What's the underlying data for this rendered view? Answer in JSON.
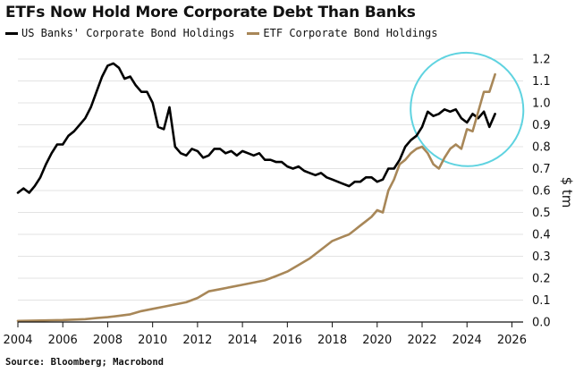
{
  "chart_data": {
    "type": "line",
    "title": "ETFs Now Hold More Corporate Debt Than Banks",
    "ylabel": "$ tm",
    "xlabel": "",
    "xlim": [
      2004,
      2026.5
    ],
    "ylim": [
      0,
      1.2
    ],
    "x_ticks": [
      "2004",
      "2006",
      "2008",
      "2010",
      "2012",
      "2014",
      "2016",
      "2018",
      "2020",
      "2022",
      "2024",
      "2026"
    ],
    "y_ticks": [
      "0.0",
      "0.1",
      "0.2",
      "0.3",
      "0.4",
      "0.5",
      "0.6",
      "0.7",
      "0.8",
      "0.9",
      "1.0",
      "1.1",
      "1.2"
    ],
    "legend_position": "top-left",
    "source": "Source: Bloomberg; Macrobond",
    "series": [
      {
        "name": "US Banks' Corporate Bond Holdings",
        "color": "#000000",
        "points": [
          [
            2004.0,
            0.59
          ],
          [
            2004.25,
            0.61
          ],
          [
            2004.5,
            0.59
          ],
          [
            2004.75,
            0.62
          ],
          [
            2005.0,
            0.66
          ],
          [
            2005.25,
            0.72
          ],
          [
            2005.5,
            0.77
          ],
          [
            2005.75,
            0.81
          ],
          [
            2006.0,
            0.81
          ],
          [
            2006.25,
            0.85
          ],
          [
            2006.5,
            0.87
          ],
          [
            2006.75,
            0.9
          ],
          [
            2007.0,
            0.93
          ],
          [
            2007.25,
            0.98
          ],
          [
            2007.5,
            1.05
          ],
          [
            2007.75,
            1.12
          ],
          [
            2008.0,
            1.17
          ],
          [
            2008.25,
            1.18
          ],
          [
            2008.5,
            1.16
          ],
          [
            2008.75,
            1.11
          ],
          [
            2009.0,
            1.12
          ],
          [
            2009.25,
            1.08
          ],
          [
            2009.5,
            1.05
          ],
          [
            2009.75,
            1.05
          ],
          [
            2010.0,
            1.0
          ],
          [
            2010.25,
            0.89
          ],
          [
            2010.5,
            0.88
          ],
          [
            2010.75,
            0.98
          ],
          [
            2011.0,
            0.8
          ],
          [
            2011.25,
            0.77
          ],
          [
            2011.5,
            0.76
          ],
          [
            2011.75,
            0.79
          ],
          [
            2012.0,
            0.78
          ],
          [
            2012.25,
            0.75
          ],
          [
            2012.5,
            0.76
          ],
          [
            2012.75,
            0.79
          ],
          [
            2013.0,
            0.79
          ],
          [
            2013.25,
            0.77
          ],
          [
            2013.5,
            0.78
          ],
          [
            2013.75,
            0.76
          ],
          [
            2014.0,
            0.78
          ],
          [
            2014.25,
            0.77
          ],
          [
            2014.5,
            0.76
          ],
          [
            2014.75,
            0.77
          ],
          [
            2015.0,
            0.74
          ],
          [
            2015.25,
            0.74
          ],
          [
            2015.5,
            0.73
          ],
          [
            2015.75,
            0.73
          ],
          [
            2016.0,
            0.71
          ],
          [
            2016.25,
            0.7
          ],
          [
            2016.5,
            0.71
          ],
          [
            2016.75,
            0.69
          ],
          [
            2017.0,
            0.68
          ],
          [
            2017.25,
            0.67
          ],
          [
            2017.5,
            0.68
          ],
          [
            2017.75,
            0.66
          ],
          [
            2018.0,
            0.65
          ],
          [
            2018.25,
            0.64
          ],
          [
            2018.5,
            0.63
          ],
          [
            2018.75,
            0.62
          ],
          [
            2019.0,
            0.64
          ],
          [
            2019.25,
            0.64
          ],
          [
            2019.5,
            0.66
          ],
          [
            2019.75,
            0.66
          ],
          [
            2020.0,
            0.64
          ],
          [
            2020.25,
            0.65
          ],
          [
            2020.5,
            0.7
          ],
          [
            2020.75,
            0.7
          ],
          [
            2021.0,
            0.74
          ],
          [
            2021.25,
            0.8
          ],
          [
            2021.5,
            0.83
          ],
          [
            2021.75,
            0.85
          ],
          [
            2022.0,
            0.89
          ],
          [
            2022.25,
            0.96
          ],
          [
            2022.5,
            0.94
          ],
          [
            2022.75,
            0.95
          ],
          [
            2023.0,
            0.97
          ],
          [
            2023.25,
            0.96
          ],
          [
            2023.5,
            0.97
          ],
          [
            2023.75,
            0.93
          ],
          [
            2024.0,
            0.91
          ],
          [
            2024.25,
            0.95
          ],
          [
            2024.5,
            0.93
          ],
          [
            2024.75,
            0.96
          ],
          [
            2025.0,
            0.89
          ],
          [
            2025.25,
            0.95
          ]
        ]
      },
      {
        "name": "ETF Corporate Bond Holdings",
        "color": "#a88758",
        "points": [
          [
            2004.0,
            0.005
          ],
          [
            2004.5,
            0.006
          ],
          [
            2005.0,
            0.007
          ],
          [
            2005.5,
            0.008
          ],
          [
            2006.0,
            0.009
          ],
          [
            2006.5,
            0.011
          ],
          [
            2007.0,
            0.013
          ],
          [
            2007.5,
            0.018
          ],
          [
            2008.0,
            0.022
          ],
          [
            2008.5,
            0.028
          ],
          [
            2009.0,
            0.035
          ],
          [
            2009.5,
            0.05
          ],
          [
            2010.0,
            0.06
          ],
          [
            2010.5,
            0.07
          ],
          [
            2011.0,
            0.08
          ],
          [
            2011.5,
            0.09
          ],
          [
            2012.0,
            0.11
          ],
          [
            2012.5,
            0.14
          ],
          [
            2013.0,
            0.15
          ],
          [
            2013.5,
            0.16
          ],
          [
            2014.0,
            0.17
          ],
          [
            2014.5,
            0.18
          ],
          [
            2015.0,
            0.19
          ],
          [
            2015.5,
            0.21
          ],
          [
            2016.0,
            0.23
          ],
          [
            2016.5,
            0.26
          ],
          [
            2017.0,
            0.29
          ],
          [
            2017.5,
            0.33
          ],
          [
            2018.0,
            0.37
          ],
          [
            2018.25,
            0.38
          ],
          [
            2018.5,
            0.39
          ],
          [
            2018.75,
            0.4
          ],
          [
            2019.0,
            0.42
          ],
          [
            2019.25,
            0.44
          ],
          [
            2019.5,
            0.46
          ],
          [
            2019.75,
            0.48
          ],
          [
            2020.0,
            0.51
          ],
          [
            2020.25,
            0.5
          ],
          [
            2020.5,
            0.6
          ],
          [
            2020.75,
            0.65
          ],
          [
            2021.0,
            0.72
          ],
          [
            2021.25,
            0.74
          ],
          [
            2021.5,
            0.77
          ],
          [
            2021.75,
            0.79
          ],
          [
            2022.0,
            0.8
          ],
          [
            2022.25,
            0.77
          ],
          [
            2022.5,
            0.72
          ],
          [
            2022.75,
            0.7
          ],
          [
            2023.0,
            0.75
          ],
          [
            2023.25,
            0.79
          ],
          [
            2023.5,
            0.81
          ],
          [
            2023.75,
            0.79
          ],
          [
            2024.0,
            0.88
          ],
          [
            2024.25,
            0.87
          ],
          [
            2024.5,
            0.96
          ],
          [
            2024.75,
            1.05
          ],
          [
            2025.0,
            1.05
          ],
          [
            2025.25,
            1.13
          ]
        ]
      }
    ],
    "annotations": [
      {
        "type": "ellipse",
        "color": "#5fd3e0",
        "center": [
          2024.0,
          0.97
        ],
        "x_radius": 2.5,
        "y_radius": 0.26,
        "rotation_deg": -32
      }
    ]
  }
}
